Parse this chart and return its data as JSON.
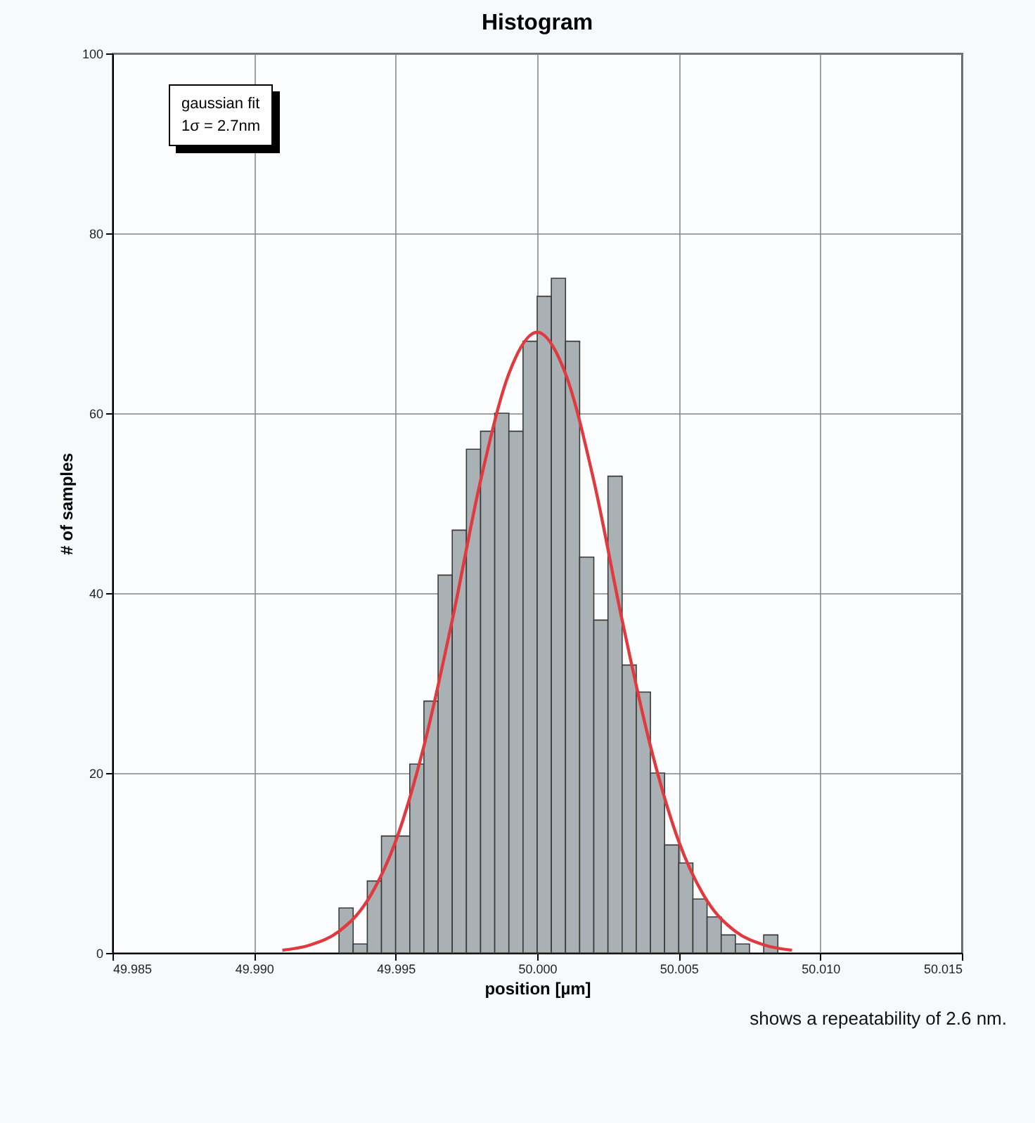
{
  "chart_data": {
    "type": "histogram",
    "title": "Histogram",
    "xlabel": "position  [µm]",
    "ylabel": "# of samples",
    "xlim": [
      49.985,
      50.015
    ],
    "xticks": [
      {
        "value": 49.985,
        "label": "49.985"
      },
      {
        "value": 49.99,
        "label": "49.990"
      },
      {
        "value": 49.995,
        "label": "49.995"
      },
      {
        "value": 50.0,
        "label": "50.000"
      },
      {
        "value": 50.005,
        "label": "50.005"
      },
      {
        "value": 50.01,
        "label": "50.010"
      },
      {
        "value": 50.015,
        "label": "50.015"
      }
    ],
    "ylim": [
      0,
      100
    ],
    "yticks": [
      0,
      20,
      40,
      60,
      80,
      100
    ],
    "grid": true,
    "series": [
      {
        "color": "#a9b1b4",
        "bins": [
          49.993,
          49.9935,
          49.994,
          49.9945,
          49.995,
          49.9955,
          49.996,
          49.9965,
          49.997,
          49.9975,
          49.998,
          49.9985,
          49.999,
          49.9995,
          50.0,
          50.0005,
          50.001,
          50.0015,
          50.002,
          50.0025,
          50.003,
          50.0035,
          50.004,
          50.0045,
          50.005,
          50.0055,
          50.006,
          50.0065,
          50.007,
          50.0075,
          50.008,
          50.0085
        ],
        "values": [
          5,
          1,
          8,
          13,
          13,
          21,
          28,
          42,
          47,
          56,
          58,
          60,
          58,
          68,
          73,
          75,
          68,
          44,
          37,
          53,
          32,
          29,
          20,
          12,
          10,
          6,
          4,
          2,
          1,
          0,
          2
        ]
      },
      {
        "type": "line",
        "color": "#e0393e",
        "x": [
          49.991,
          49.992,
          49.993,
          49.994,
          49.995,
          49.996,
          49.997,
          49.998,
          49.999,
          50.0,
          50.001,
          50.002,
          50.003,
          50.004,
          50.005,
          50.006,
          50.007,
          50.008,
          50.009
        ],
        "values": [
          0.3,
          0.9,
          2.4,
          5.8,
          12.4,
          23,
          37,
          52.5,
          64.4,
          69,
          64.4,
          52.5,
          37,
          23,
          12.4,
          5.8,
          2.4,
          0.9,
          0.3
        ]
      }
    ],
    "annotations": [
      "gaussian fit",
      "1σ = 2.7nm",
      "shows a repeatability of 2.6 nm."
    ]
  }
}
